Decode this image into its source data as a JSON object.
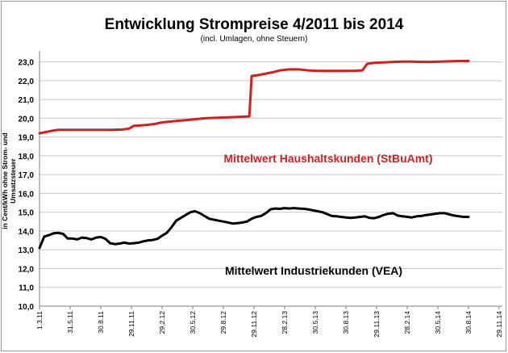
{
  "chart_data": {
    "type": "line",
    "title": "Entwicklung Strompreise 4/2011 bis 2014",
    "subtitle": "(incl. Umlagen, ohne Steuern)",
    "ylabel": "in Cent/kWh ohne Strom- und Umsatzsteuer",
    "xlabel": "",
    "ylim": [
      10,
      23.5
    ],
    "yticks": [
      "10,0",
      "11,0",
      "12,0",
      "13,0",
      "14,0",
      "15,0",
      "16,0",
      "17,0",
      "18,0",
      "19,0",
      "20,0",
      "21,0",
      "22,0",
      "23,0"
    ],
    "xticks": [
      "1.3.11",
      "31.5.11",
      "30.8.11",
      "29.11.11",
      "29.2.12",
      "30.5.12",
      "29.8.12",
      "29.11.12",
      "28.2.13",
      "30.5.13",
      "30.8.13",
      "29.11.13",
      "28.2.14",
      "30.5.14",
      "30.8.14",
      "29.11.14"
    ],
    "grid": true,
    "x_unit": "week index from 1.3.11 (ticks every 13 weeks)",
    "series": [
      {
        "name": "Mittelwert  Haushaltskunden (StBuAmt)",
        "color": "#d31f1f",
        "points": [
          [
            0,
            19.2
          ],
          [
            2,
            19.25
          ],
          [
            4,
            19.3
          ],
          [
            6,
            19.35
          ],
          [
            8,
            19.38
          ],
          [
            12,
            19.38
          ],
          [
            18,
            19.38
          ],
          [
            24,
            19.38
          ],
          [
            30,
            19.38
          ],
          [
            35,
            19.4
          ],
          [
            38,
            19.45
          ],
          [
            40,
            19.6
          ],
          [
            43,
            19.62
          ],
          [
            46,
            19.65
          ],
          [
            49,
            19.7
          ],
          [
            52,
            19.78
          ],
          [
            55,
            19.82
          ],
          [
            58,
            19.86
          ],
          [
            62,
            19.9
          ],
          [
            66,
            19.95
          ],
          [
            70,
            20.0
          ],
          [
            74,
            20.02
          ],
          [
            78,
            20.04
          ],
          [
            82,
            20.06
          ],
          [
            86,
            20.08
          ],
          [
            89,
            20.1
          ],
          [
            90,
            22.25
          ],
          [
            93,
            22.3
          ],
          [
            96,
            22.38
          ],
          [
            99,
            22.45
          ],
          [
            102,
            22.55
          ],
          [
            106,
            22.6
          ],
          [
            110,
            22.6
          ],
          [
            114,
            22.55
          ],
          [
            118,
            22.52
          ],
          [
            122,
            22.52
          ],
          [
            126,
            22.52
          ],
          [
            130,
            22.52
          ],
          [
            134,
            22.53
          ],
          [
            137,
            22.55
          ],
          [
            139,
            22.9
          ],
          [
            142,
            22.95
          ],
          [
            146,
            22.97
          ],
          [
            150,
            23.0
          ],
          [
            154,
            23.02
          ],
          [
            158,
            23.02
          ],
          [
            162,
            23.0
          ],
          [
            166,
            23.0
          ],
          [
            170,
            23.02
          ],
          [
            174,
            23.03
          ],
          [
            178,
            23.05
          ],
          [
            182,
            23.05
          ]
        ]
      },
      {
        "name": "Mittelwert  Industriekunden (VEA)",
        "color": "#000000",
        "points": [
          [
            0,
            13.1
          ],
          [
            2,
            13.7
          ],
          [
            4,
            13.78
          ],
          [
            6,
            13.88
          ],
          [
            8,
            13.9
          ],
          [
            10,
            13.85
          ],
          [
            12,
            13.6
          ],
          [
            14,
            13.6
          ],
          [
            16,
            13.55
          ],
          [
            18,
            13.65
          ],
          [
            20,
            13.62
          ],
          [
            22,
            13.55
          ],
          [
            24,
            13.65
          ],
          [
            26,
            13.68
          ],
          [
            28,
            13.58
          ],
          [
            30,
            13.35
          ],
          [
            32,
            13.3
          ],
          [
            34,
            13.33
          ],
          [
            36,
            13.38
          ],
          [
            38,
            13.33
          ],
          [
            40,
            13.35
          ],
          [
            42,
            13.38
          ],
          [
            44,
            13.45
          ],
          [
            46,
            13.5
          ],
          [
            48,
            13.52
          ],
          [
            50,
            13.58
          ],
          [
            52,
            13.75
          ],
          [
            54,
            13.9
          ],
          [
            56,
            14.2
          ],
          [
            58,
            14.55
          ],
          [
            60,
            14.7
          ],
          [
            62,
            14.85
          ],
          [
            64,
            15.0
          ],
          [
            66,
            15.05
          ],
          [
            68,
            14.95
          ],
          [
            70,
            14.8
          ],
          [
            72,
            14.65
          ],
          [
            74,
            14.6
          ],
          [
            76,
            14.55
          ],
          [
            78,
            14.5
          ],
          [
            80,
            14.45
          ],
          [
            82,
            14.4
          ],
          [
            84,
            14.42
          ],
          [
            86,
            14.45
          ],
          [
            88,
            14.5
          ],
          [
            90,
            14.65
          ],
          [
            92,
            14.75
          ],
          [
            94,
            14.8
          ],
          [
            96,
            14.95
          ],
          [
            98,
            15.15
          ],
          [
            100,
            15.2
          ],
          [
            102,
            15.18
          ],
          [
            104,
            15.22
          ],
          [
            106,
            15.2
          ],
          [
            108,
            15.22
          ],
          [
            110,
            15.2
          ],
          [
            112,
            15.18
          ],
          [
            114,
            15.15
          ],
          [
            116,
            15.1
          ],
          [
            118,
            15.05
          ],
          [
            120,
            15.0
          ],
          [
            122,
            14.9
          ],
          [
            124,
            14.8
          ],
          [
            126,
            14.78
          ],
          [
            128,
            14.75
          ],
          [
            130,
            14.72
          ],
          [
            132,
            14.7
          ],
          [
            134,
            14.72
          ],
          [
            136,
            14.75
          ],
          [
            138,
            14.78
          ],
          [
            140,
            14.7
          ],
          [
            142,
            14.68
          ],
          [
            144,
            14.75
          ],
          [
            146,
            14.85
          ],
          [
            148,
            14.92
          ],
          [
            150,
            14.95
          ],
          [
            152,
            14.82
          ],
          [
            154,
            14.78
          ],
          [
            156,
            14.75
          ],
          [
            158,
            14.72
          ],
          [
            160,
            14.78
          ],
          [
            162,
            14.8
          ],
          [
            164,
            14.85
          ],
          [
            166,
            14.88
          ],
          [
            168,
            14.92
          ],
          [
            170,
            14.95
          ],
          [
            172,
            14.95
          ],
          [
            174,
            14.88
          ],
          [
            176,
            14.82
          ],
          [
            178,
            14.78
          ],
          [
            180,
            14.75
          ],
          [
            182,
            14.75
          ]
        ]
      }
    ]
  },
  "annotations": [
    {
      "text": "Mittelwert  Haushaltskunden (StBuAmt)",
      "color": "#d31f1f",
      "series": 0
    },
    {
      "text": "Mittelwert  Industriekunden (VEA)",
      "color": "#000000",
      "series": 1
    }
  ]
}
